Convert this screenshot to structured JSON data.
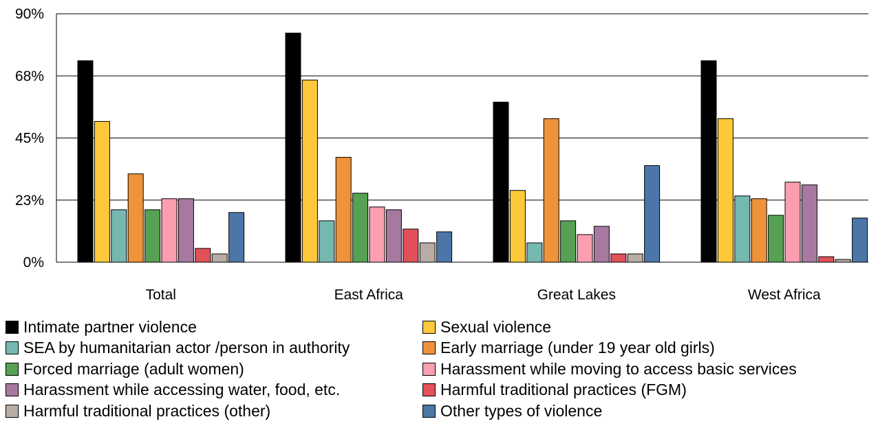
{
  "chart_data": {
    "type": "bar",
    "ylim": [
      0,
      90
    ],
    "yticks": [
      "0%",
      "23%",
      "45%",
      "68%",
      "90%"
    ],
    "ytick_values": [
      0,
      22.5,
      45,
      67.5,
      90
    ],
    "categories": [
      "Total",
      "East Africa",
      "Great Lakes",
      "West Africa"
    ],
    "grid": true,
    "legend_position": "bottom",
    "series": [
      {
        "name": "Intimate partner violence",
        "color": "#000000",
        "values": [
          73,
          83,
          58,
          73
        ]
      },
      {
        "name": "Sexual violence",
        "color": "#fdc93a",
        "values": [
          51,
          66,
          26,
          52
        ]
      },
      {
        "name": "SEA by humanitarian actor /person in authority",
        "color": "#74b8b1",
        "values": [
          19,
          15,
          7,
          24
        ]
      },
      {
        "name": "Early marriage (under 19 year old girls)",
        "color": "#f0923a",
        "values": [
          32,
          38,
          52,
          23
        ]
      },
      {
        "name": "Forced marriage (adult women)",
        "color": "#56a153",
        "values": [
          19,
          25,
          15,
          17
        ]
      },
      {
        "name": "Harassment while moving to access basic services",
        "color": "#fb9fb0",
        "values": [
          23,
          20,
          10,
          29
        ]
      },
      {
        "name": "Harassment while accessing water, food, etc.",
        "color": "#a779a0",
        "values": [
          23,
          19,
          13,
          28
        ]
      },
      {
        "name": "Harmful traditional practices (FGM)",
        "color": "#e2505a",
        "values": [
          5,
          12,
          3,
          2
        ]
      },
      {
        "name": "Harmful traditional practices (other)",
        "color": "#b8aca5",
        "values": [
          3,
          7,
          3,
          1
        ]
      },
      {
        "name": "Other types of violence",
        "color": "#4c76a7",
        "values": [
          18,
          11,
          35,
          16
        ]
      }
    ]
  }
}
